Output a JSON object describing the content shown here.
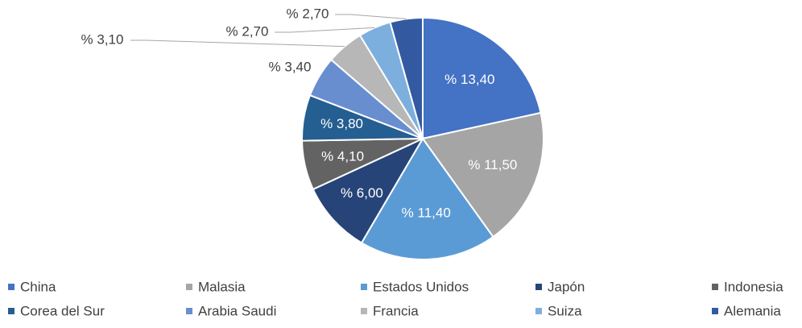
{
  "chart_data": {
    "type": "pie",
    "categories": [
      "China",
      "Malasia",
      "Estados Unidos",
      "Japón",
      "Indonesia",
      "Corea del Sur",
      "Arabia Saudi",
      "Francia",
      "Suiza",
      "Alemania"
    ],
    "values": [
      13.4,
      11.5,
      11.4,
      6.0,
      4.1,
      3.8,
      3.4,
      3.1,
      2.7,
      2.7
    ],
    "value_labels": [
      "% 13,40",
      "% 11,50",
      "% 11,40",
      "% 6,00",
      "% 4,10",
      "% 3,80",
      "% 3,40",
      "% 3,10",
      "% 2,70",
      "% 2,70"
    ],
    "colors": [
      "#4472c4",
      "#a5a5a5",
      "#5b9bd5",
      "#264478",
      "#636363",
      "#255e91",
      "#698ed0",
      "#b7b7b7",
      "#7cafdd",
      "#335aa1"
    ],
    "legend": "bottom"
  }
}
